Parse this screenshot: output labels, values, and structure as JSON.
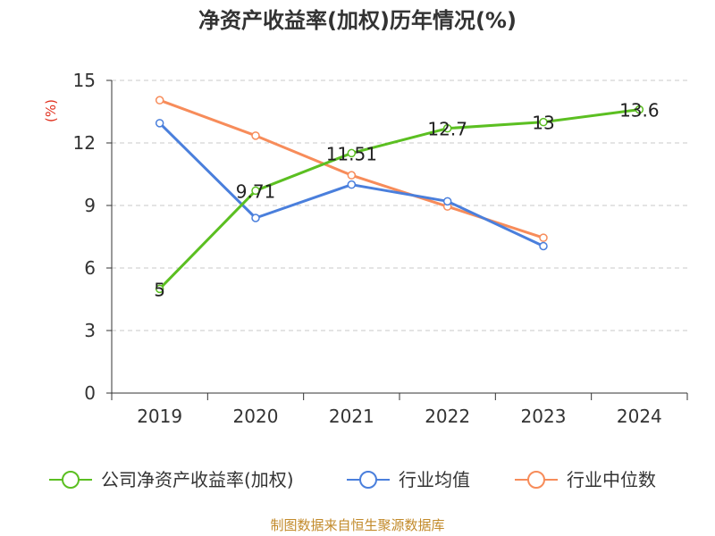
{
  "chart_data": {
    "type": "line",
    "title": "净资产收益率(加权)历年情况(%)",
    "ylabel": "(%)",
    "xlabel": "",
    "categories": [
      "2019",
      "2020",
      "2021",
      "2022",
      "2023",
      "2024"
    ],
    "ylim": [
      0,
      15
    ],
    "yticks": [
      0,
      3,
      6,
      9,
      12,
      15
    ],
    "grid": true,
    "legend_position": "bottom",
    "series": [
      {
        "name": "公司净资产收益率(加权)",
        "color": "#5bbf21",
        "values": [
          5,
          9.71,
          11.51,
          12.7,
          13,
          13.6
        ],
        "labels": [
          "5",
          "9.71",
          "11.51",
          "12.7",
          "13",
          "13.6"
        ]
      },
      {
        "name": "行业均值",
        "color": "#4a7fdc",
        "values": [
          12.95,
          8.4,
          10.0,
          9.2,
          7.05,
          null
        ]
      },
      {
        "name": "行业中位数",
        "color": "#f78c5a",
        "values": [
          14.05,
          12.35,
          10.45,
          8.95,
          7.45,
          null
        ]
      }
    ]
  },
  "source_text": "制图数据来自恒生聚源数据库"
}
